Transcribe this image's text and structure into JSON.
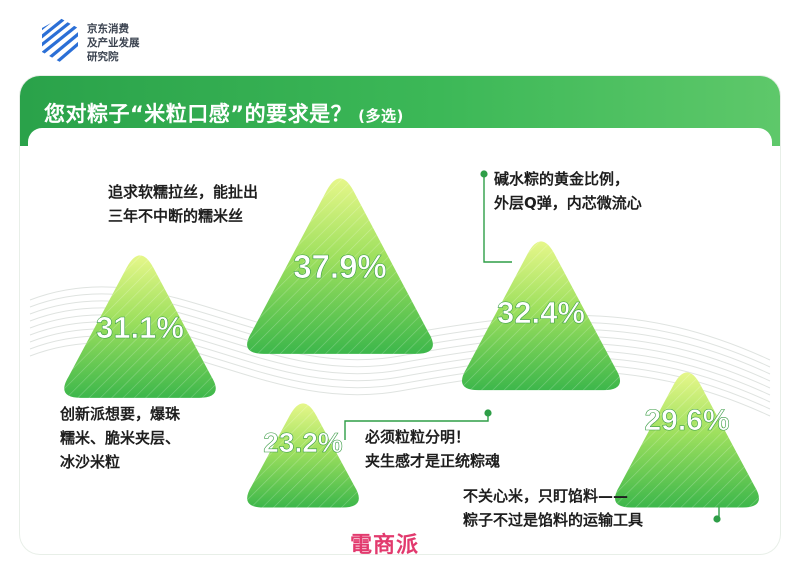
{
  "brand": {
    "lines": [
      "京东消费",
      "及产业发展",
      "研究院"
    ],
    "icon": "stripes-logo-icon"
  },
  "title": "您对粽子“米粒口感”的要求是？",
  "title_sub": "(多选)",
  "chart_data": {
    "type": "bar",
    "title": "您对粽子“米粒口感”的要求是？(多选)",
    "unit": "%",
    "categories": [
      "追求软糯拉丝，能扯出三年不中断的糯米丝",
      "碱水粽的黄金比例，外层Q弹，内芯微流心",
      "创新派想要，爆珠糯米、脆米夹层、冰沙米粒",
      "必须粒粒分明！夹生感才是正统粽魂",
      "不关心米，只盯馅料——粽子不过是馅料的运输工具"
    ],
    "values": [
      37.9,
      32.4,
      31.1,
      23.2,
      29.6
    ],
    "value_labels": [
      "37.9%",
      "32.4%",
      "31.1%",
      "23.2%",
      "29.6%"
    ],
    "colors": {
      "fill_top": "#d9f27a",
      "fill_bottom": "#3cb84a",
      "accent": "#2e9e47",
      "dot": "#2e9e47"
    }
  },
  "captions": [
    {
      "lines": [
        "追求软糯拉丝，能扯出",
        "三年不中断的糯米丝"
      ]
    },
    {
      "lines": [
        "碱水粽的黄金比例，",
        "外层Q弹，内芯微流心"
      ]
    },
    {
      "lines": [
        "创新派想要，爆珠",
        "糯米、脆米夹层、",
        "冰沙米粒"
      ]
    },
    {
      "lines": [
        "必须粒粒分明！",
        "夹生感才是正统粽魂"
      ]
    },
    {
      "lines": [
        "不关心米，只盯馅料——",
        "粽子不过是馅料的运输工具"
      ]
    }
  ],
  "watermark": "電商派"
}
